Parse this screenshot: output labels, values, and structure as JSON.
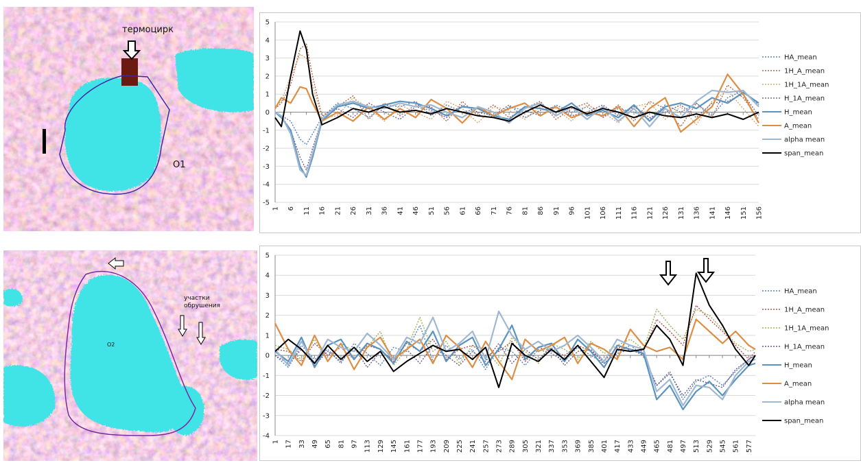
{
  "images": [
    {
      "labels": [
        "термоцирк",
        "O1"
      ]
    },
    {
      "labels": [
        "O2",
        "участки обрушения"
      ]
    }
  ],
  "chart_data": [
    {
      "type": "line",
      "x": [
        1,
        3,
        6,
        9,
        11,
        13,
        16,
        21,
        26,
        31,
        36,
        41,
        46,
        51,
        56,
        61,
        66,
        71,
        76,
        81,
        86,
        91,
        96,
        101,
        106,
        111,
        116,
        121,
        126,
        131,
        136,
        141,
        146,
        151,
        156
      ],
      "xlim": [
        1,
        156
      ],
      "xticks": [
        1,
        6,
        11,
        16,
        21,
        26,
        31,
        36,
        41,
        46,
        51,
        56,
        61,
        66,
        71,
        76,
        81,
        86,
        91,
        96,
        101,
        106,
        111,
        116,
        121,
        126,
        131,
        136,
        141,
        146,
        151,
        156
      ],
      "ylim": [
        -5,
        5
      ],
      "yticks": [
        -5,
        -4,
        -3,
        -2,
        -1,
        0,
        1,
        2,
        3,
        4,
        5
      ],
      "grid": true,
      "legend": "right",
      "series": [
        {
          "name": "HA_mean",
          "color": "#4f81bd",
          "style": "dotted",
          "values": [
            0,
            -0.2,
            -0.5,
            -1.5,
            -1.8,
            -1.2,
            -0.3,
            0.5,
            0.2,
            -0.3,
            0.4,
            0.3,
            0.6,
            -0.2,
            0.4,
            0,
            0.2,
            -0.3,
            0.3,
            0.1,
            -0.2,
            0.4,
            0,
            0.3,
            -0.3,
            0.2,
            0,
            -0.4,
            0.4,
            0,
            0.5,
            -0.2,
            0.8,
            1.2,
            0.4
          ]
        },
        {
          "name": "1H_A_mean",
          "color": "#b8624a",
          "style": "dotted",
          "values": [
            0.2,
            0.5,
            1.5,
            3.5,
            3.8,
            2,
            -0.2,
            0.3,
            0.9,
            -0.4,
            0.5,
            -0.2,
            0.4,
            0.3,
            -0.5,
            0.6,
            -0.2,
            0.4,
            -0.3,
            0.2,
            0.6,
            -0.4,
            0.2,
            0.5,
            -0.3,
            0.4,
            -0.5,
            0.6,
            0.2,
            -0.8,
            0.5,
            -0.3,
            1.5,
            0.8,
            -0.4
          ]
        },
        {
          "name": "1H_1A_mean",
          "color": "#d9a66e",
          "style": "dotted",
          "values": [
            0.3,
            0.6,
            2,
            3.2,
            3,
            1.5,
            -0.3,
            -0.2,
            0.8,
            0.2,
            -0.5,
            0.4,
            0,
            -0.4,
            0.6,
            0.2,
            -0.6,
            0.3,
            0.1,
            -0.4,
            0.3,
            0.2,
            -0.5,
            0.4,
            0,
            -0.6,
            0.3,
            0.5,
            -0.4,
            0.3,
            -0.7,
            0.6,
            1.2,
            0.2,
            -0.8
          ]
        },
        {
          "name": "H_1A_mean",
          "color": "#7a5f8e",
          "style": "dotted",
          "values": [
            0,
            -0.2,
            -1,
            -2.5,
            -3.2,
            -2,
            -0.4,
            0.2,
            -0.3,
            0.5,
            0,
            -0.4,
            0.3,
            0.1,
            -0.3,
            0.4,
            0,
            -0.2,
            0.4,
            -0.3,
            0.1,
            0.3,
            -0.2,
            0,
            0.4,
            -0.2,
            0.3,
            -0.3,
            0,
            0.4,
            -0.3,
            0.5,
            0.6,
            1,
            -0.2
          ]
        },
        {
          "name": "H_mean",
          "color": "#5b93bf",
          "style": "solid",
          "values": [
            0,
            -0.3,
            -1,
            -3,
            -3.6,
            -2.5,
            -0.5,
            0.3,
            0.5,
            0.2,
            0.4,
            0.6,
            0.5,
            0.2,
            -0.2,
            0.3,
            0.2,
            -0.2,
            -0.4,
            0.3,
            0.2,
            0,
            0.5,
            -0.2,
            0.1,
            -0.3,
            0.4,
            -0.5,
            0.3,
            0.5,
            0.2,
            0.8,
            0.5,
            1.1,
            0.5
          ]
        },
        {
          "name": "A_mean",
          "color": "#dd8e45",
          "style": "solid",
          "values": [
            0.2,
            0.8,
            0.5,
            1.4,
            1.3,
            0.5,
            -0.5,
            0,
            -0.5,
            0.3,
            -0.4,
            0.2,
            -0.3,
            0.7,
            0.2,
            -0.6,
            0.3,
            -0.2,
            0.2,
            0.5,
            -0.2,
            0.3,
            -0.3,
            0,
            -0.2,
            0.3,
            -0.8,
            0.2,
            0.8,
            -1.1,
            -0.4,
            0.3,
            2.1,
            1,
            -0.6
          ]
        },
        {
          "name": "alpha mean",
          "color": "#9fb8d2",
          "style": "solid",
          "values": [
            0,
            -0.2,
            -1.2,
            -3.2,
            -3.5,
            -2.3,
            -0.4,
            0.4,
            0.6,
            0.3,
            0.2,
            0.5,
            0.3,
            0.4,
            0,
            -0.3,
            0.3,
            0,
            -0.6,
            0.2,
            0.5,
            -0.2,
            0.3,
            -0.4,
            0.3,
            -0.5,
            0.2,
            -0.8,
            0.2,
            -0.3,
            0.6,
            1.2,
            1.1,
            1.2,
            0.3
          ]
        },
        {
          "name": "span_mean",
          "color": "#000000",
          "style": "solid",
          "values": [
            -0.3,
            -0.8,
            2,
            4.5,
            3.5,
            1,
            -0.7,
            -0.3,
            0.2,
            0,
            0.3,
            0,
            0.1,
            -0.1,
            0.2,
            0,
            -0.2,
            -0.3,
            -0.5,
            0,
            0.4,
            0,
            0.3,
            -0.1,
            0.2,
            0,
            -0.3,
            0,
            -0.2,
            -0.3,
            -0.1,
            -0.3,
            -0.1,
            -0.4,
            0
          ]
        }
      ]
    },
    {
      "type": "line",
      "x": [
        1,
        17,
        33,
        49,
        65,
        81,
        97,
        113,
        129,
        145,
        161,
        177,
        193,
        209,
        225,
        241,
        257,
        273,
        289,
        305,
        321,
        337,
        353,
        369,
        385,
        401,
        417,
        433,
        449,
        465,
        481,
        497,
        513,
        529,
        545,
        561,
        577,
        585
      ],
      "xlim": [
        1,
        585
      ],
      "xticks": [
        1,
        17,
        33,
        49,
        65,
        81,
        97,
        113,
        129,
        145,
        161,
        177,
        193,
        209,
        225,
        241,
        257,
        273,
        289,
        305,
        321,
        337,
        353,
        369,
        385,
        401,
        417,
        433,
        449,
        465,
        481,
        497,
        513,
        529,
        545,
        561,
        577
      ],
      "ylim": [
        -4,
        5
      ],
      "yticks": [
        -4,
        -3,
        -2,
        -1,
        0,
        1,
        2,
        3,
        4,
        5
      ],
      "grid": true,
      "legend": "right",
      "series": [
        {
          "name": "HA_mean",
          "color": "#4f81bd",
          "style": "dotted",
          "values": [
            0,
            -0.6,
            0.5,
            -0.2,
            0.3,
            -0.4,
            0.6,
            0.1,
            -0.5,
            0.4,
            0.2,
            1.5,
            -0.3,
            0.5,
            -0.2,
            0.3,
            -0.7,
            0.4,
            0.2,
            -0.5,
            0.3,
            0.1,
            -0.3,
            0.4,
            0,
            -0.4,
            0.2,
            0.5,
            0,
            -1.5,
            -0.8,
            -2.2,
            -1.3,
            -1,
            -1.5,
            -0.8,
            -0.2,
            0
          ]
        },
        {
          "name": "1H_A_mean",
          "color": "#b84a4a",
          "style": "dotted",
          "values": [
            0.3,
            0.2,
            -0.3,
            0.6,
            0,
            0.4,
            -0.2,
            0.5,
            0.3,
            -0.3,
            0.6,
            0.2,
            0.8,
            -0.2,
            0.3,
            0.5,
            0,
            0.2,
            0.7,
            -0.3,
            0.4,
            0.2,
            0,
            0.5,
            0.2,
            -0.3,
            0.4,
            0.3,
            0.2,
            1.8,
            1.2,
            0.5,
            2.5,
            1.8,
            1.2,
            0.5,
            -0.2,
            0.2
          ]
        },
        {
          "name": "1H_1A_mean",
          "color": "#9bb04f",
          "style": "dotted",
          "values": [
            0.5,
            0.3,
            -0.2,
            0.8,
            -0.3,
            0.6,
            0.2,
            0.4,
            1.2,
            -0.5,
            0.3,
            1.9,
            0.2,
            0.7,
            -0.4,
            0.5,
            0.3,
            -0.5,
            0.9,
            0.2,
            -0.4,
            0.6,
            0.3,
            -0.2,
            0.7,
            0.1,
            0.5,
            0.8,
            0.3,
            2.3,
            1.5,
            0.8,
            2.3,
            2,
            1.3,
            0.6,
            0.2,
            0.3
          ]
        },
        {
          "name": "H_1A_mean",
          "color": "#6a5585",
          "style": "dotted",
          "values": [
            0,
            -0.4,
            0.3,
            -0.5,
            0.2,
            -0.3,
            0.4,
            -0.6,
            0.2,
            -0.2,
            0.3,
            -0.4,
            0.5,
            0,
            -0.5,
            0.2,
            -0.3,
            0.6,
            -0.4,
            0.3,
            -0.2,
            0.4,
            -0.5,
            0.2,
            0.3,
            -0.4,
            0.1,
            0.3,
            0,
            -1.5,
            -0.9,
            -2,
            -1.2,
            -1.4,
            -1.6,
            -0.7,
            -0.2,
            0
          ]
        },
        {
          "name": "H_mean",
          "color": "#5b93bf",
          "style": "solid",
          "values": [
            0.2,
            -0.3,
            0.9,
            -0.6,
            0.5,
            0.8,
            -0.2,
            0.6,
            0.3,
            -0.4,
            0.7,
            0.2,
            1.2,
            -0.3,
            0.5,
            0.9,
            -0.5,
            0.3,
            1.5,
            -0.2,
            0.4,
            0.6,
            -0.3,
            0.8,
            0.2,
            -0.6,
            0.5,
            0.3,
            0.1,
            -2.2,
            -1.5,
            -2.7,
            -1.8,
            -1.3,
            -2,
            -1.2,
            -0.5,
            -0.4
          ]
        },
        {
          "name": "A_mean",
          "color": "#dd8e45",
          "style": "solid",
          "values": [
            1.6,
            0.3,
            -0.5,
            1,
            -0.3,
            0.6,
            -0.7,
            0.4,
            0.9,
            -0.2,
            0.3,
            0.8,
            -0.4,
            1,
            0.4,
            -0.6,
            0.7,
            -0.3,
            -1.2,
            0.8,
            0.2,
            0.5,
            0.9,
            -0.4,
            0.6,
            0.3,
            -0.2,
            1.3,
            0.5,
            0.2,
            0.4,
            -0.2,
            1.8,
            1.2,
            0.6,
            1.2,
            0.5,
            0.3
          ]
        },
        {
          "name": "alpha mean",
          "color": "#9fb8d2",
          "style": "solid",
          "values": [
            0.3,
            -0.5,
            0.7,
            -0.4,
            0.8,
            0.4,
            0.2,
            1.1,
            0.5,
            -0.2,
            0.9,
            0.6,
            1.9,
            0.2,
            0.6,
            1.2,
            -0.2,
            2.2,
            1,
            0.3,
            0.7,
            0.2,
            0.5,
            1,
            0.4,
            -0.3,
            0.8,
            0.5,
            0.3,
            -1.8,
            -1.2,
            -2.5,
            -1.5,
            -1.6,
            -2.2,
            -1,
            -0.3,
            -0.2
          ]
        },
        {
          "name": "span_mean",
          "color": "#000000",
          "style": "solid",
          "values": [
            0.2,
            0.8,
            0.3,
            -0.4,
            0.5,
            -0.2,
            0.4,
            -0.3,
            0.2,
            -0.8,
            -0.3,
            0.1,
            0.5,
            0.2,
            0.3,
            -0.2,
            0.4,
            -1.6,
            0.6,
            0,
            -0.3,
            0.3,
            -0.2,
            0.5,
            -0.3,
            -1.1,
            0.3,
            0.2,
            0.3,
            1.5,
            0.8,
            -0.5,
            4.1,
            2.5,
            1.5,
            0.3,
            -0.5,
            0
          ]
        }
      ]
    }
  ]
}
